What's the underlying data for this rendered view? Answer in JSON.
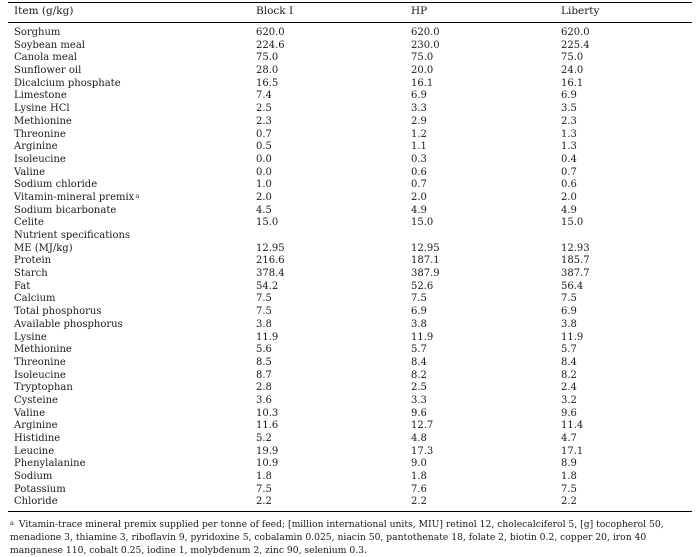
{
  "table": {
    "headers": [
      "Item (g/kg)",
      "Block I",
      "HP",
      "Liberty"
    ],
    "rows": [
      [
        "Sorghum",
        "620.0",
        "620.0",
        "620.0"
      ],
      [
        "Soybean meal",
        "224.6",
        "230.0",
        "225.4"
      ],
      [
        "Canola meal",
        "75.0",
        "75.0",
        "75.0"
      ],
      [
        "Sunflower oil",
        "28.0",
        "20.0",
        "24.0"
      ],
      [
        "Dicalcium phosphate",
        "16.5",
        "16.1",
        "16.1"
      ],
      [
        "Limestone",
        "7.4",
        "6.9",
        "6.9"
      ],
      [
        "Lysine HCl",
        "2.5",
        "3.3",
        "3.5"
      ],
      [
        "Methionine",
        "2.3",
        "2.9",
        "2.3"
      ],
      [
        "Threonine",
        "0.7",
        "1.2",
        "1.3"
      ],
      [
        "Arginine",
        "0.5",
        "1.1",
        "1.3"
      ],
      [
        "Isoleucine",
        "0.0",
        "0.3",
        "0.4"
      ],
      [
        "Valine",
        "0.0",
        "0.6",
        "0.7"
      ],
      [
        "Sodium chloride",
        "1.0",
        "0.7",
        "0.6"
      ],
      [
        "Vitamin-mineral premix",
        "2.0",
        "2.0",
        "2.0"
      ],
      [
        "Sodium bicarbonate",
        "4.5",
        "4.9",
        "4.9"
      ],
      [
        "Celite",
        "15.0",
        "15.0",
        "15.0"
      ],
      [
        "Nutrient specifications",
        "",
        "",
        ""
      ],
      [
        "ME (MJ/kg)",
        "12.95",
        "12.95",
        "12.93"
      ],
      [
        "Protein",
        "216.6",
        "187.1",
        "185.7"
      ],
      [
        "Starch",
        "378.4",
        "387.9",
        "387.7"
      ],
      [
        "Fat",
        "54.2",
        "52.6",
        "56.4"
      ],
      [
        "Calcium",
        "7.5",
        "7.5",
        "7.5"
      ],
      [
        "Total phosphorus",
        "7.5",
        "6.9",
        "6.9"
      ],
      [
        "Available phosphorus",
        "3.8",
        "3.8",
        "3.8"
      ],
      [
        "Lysine",
        "11.9",
        "11.9",
        "11.9"
      ],
      [
        "Methionine",
        "5.6",
        "5.7",
        "5.7"
      ],
      [
        "Threonine",
        "8.5",
        "8.4",
        "8.4"
      ],
      [
        "Isoleucine",
        "8.7",
        "8.2",
        "8.2"
      ],
      [
        "Tryptophan",
        "2.8",
        "2.5",
        "2.4"
      ],
      [
        "Cysteine",
        "3.6",
        "3.3",
        "3.2"
      ],
      [
        "Valine",
        "10.3",
        "9.6",
        "9.6"
      ],
      [
        "Arginine",
        "11.6",
        "12.7",
        "11.4"
      ],
      [
        "Histidine",
        "5.2",
        "4.8",
        "4.7"
      ],
      [
        "Leucine",
        "19.9",
        "17.3",
        "17.1"
      ],
      [
        "Phenylalanine",
        "10.9",
        "9.0",
        "8.9"
      ],
      [
        "Sodium",
        "1.8",
        "1.8",
        "1.8"
      ],
      [
        "Potassium",
        "7.5",
        "7.6",
        "7.5"
      ],
      [
        "Chloride",
        "2.2",
        "2.2",
        "2.2"
      ]
    ],
    "premix_marker": "a",
    "premix_row_index": 13
  },
  "footnote": {
    "marker": "a",
    "text": "Vitamin-trace mineral premix supplied per tonne of feed; [million international units, MIU] retinol 12, cholecalciferol 5, [g] tocopherol 50, menadione 3, thiamine 3, riboflavin 9, pyridoxine 5, cobalamin 0.025, niacin 50, pantothenate 18, folate 2, biotin 0.2, copper 20, iron 40 manganese 110, cobalt 0.25, iodine 1, molybdenum 2, zinc 90, selenium 0.3."
  }
}
